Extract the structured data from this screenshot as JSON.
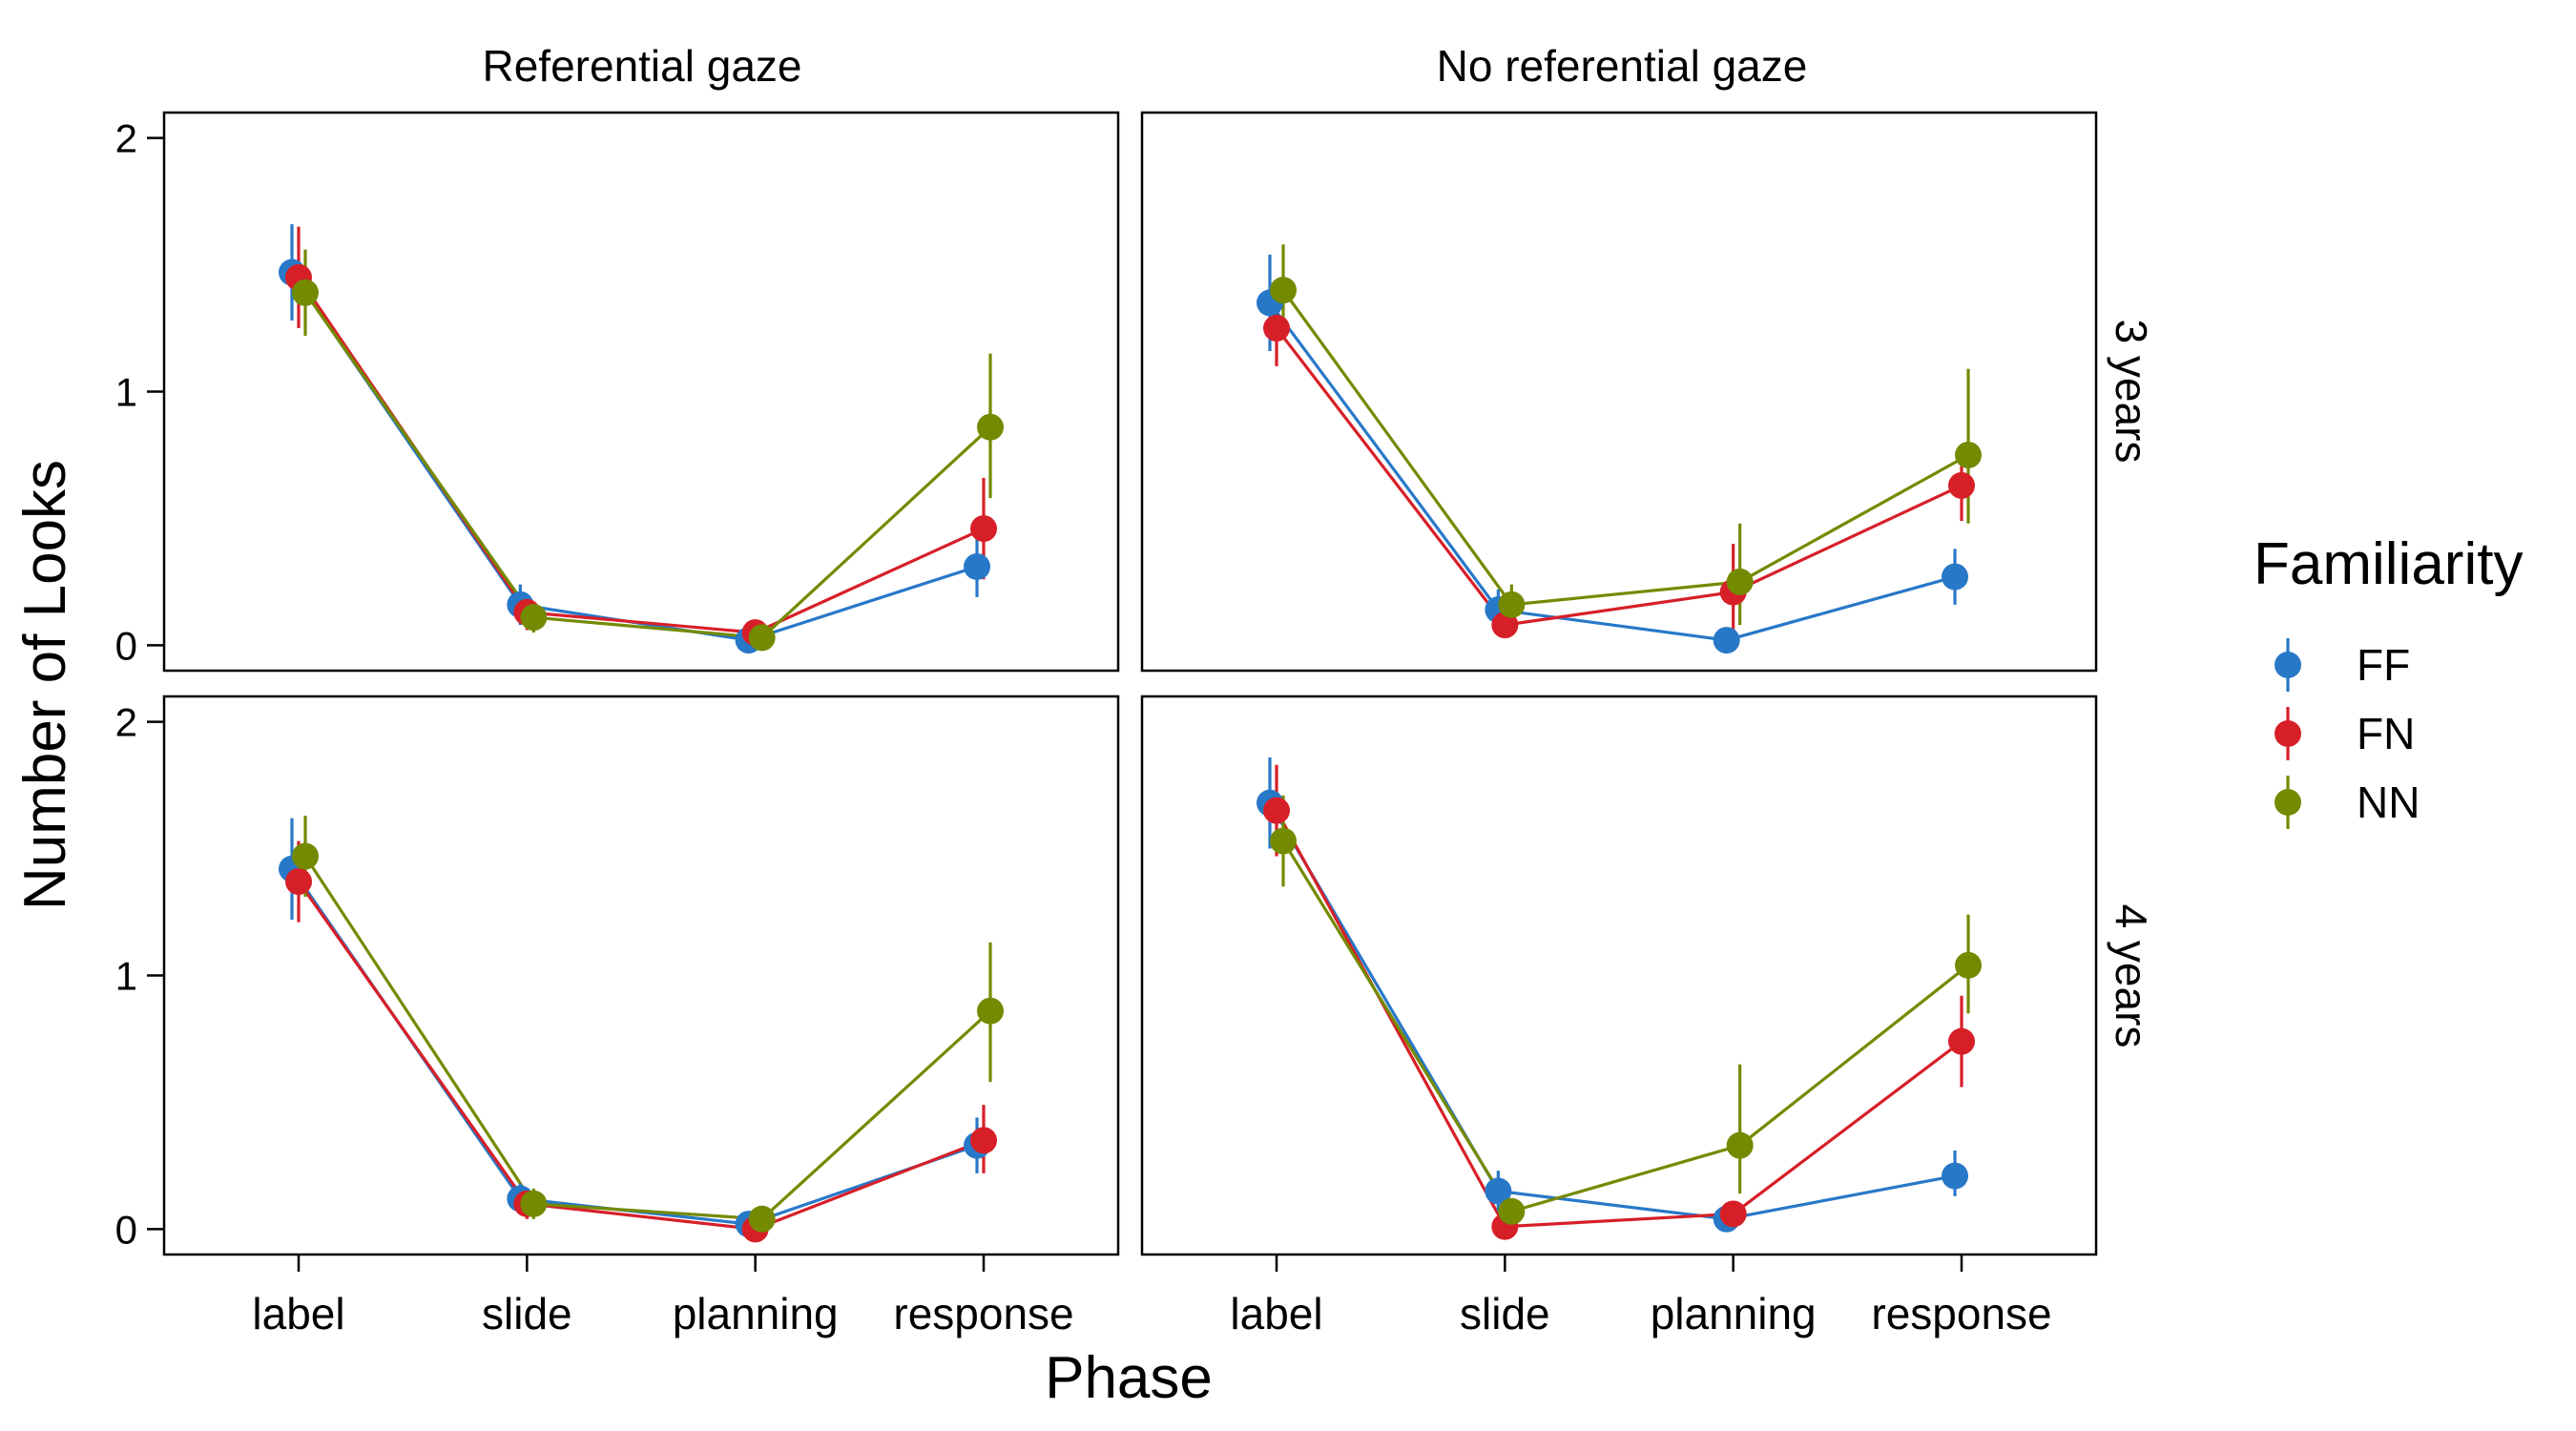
{
  "chart_data": {
    "type": "line",
    "facet_columns": [
      "Referential gaze",
      "No referential gaze"
    ],
    "facet_rows": [
      "3 years",
      "4 years"
    ],
    "categories": [
      "label",
      "slide",
      "planning",
      "response"
    ],
    "xlabel": "Phase",
    "ylabel": "Number of Looks",
    "ylim": [
      -0.1,
      2.1
    ],
    "yticks": [
      0,
      1,
      2
    ],
    "grid": false,
    "legend": {
      "title": "Familiarity",
      "position": "right",
      "entries": [
        "FF",
        "FN",
        "NN"
      ]
    },
    "series_style": {
      "FF": {
        "color": "#2878c8"
      },
      "FN": {
        "color": "#d71f28"
      },
      "NN": {
        "color": "#748a00"
      }
    },
    "panels": [
      {
        "row": "3 years",
        "column": "Referential gaze",
        "series": [
          {
            "name": "FF",
            "values": [
              1.47,
              0.16,
              0.02,
              0.31
            ],
            "lower": [
              1.28,
              0.08,
              0.0,
              0.19
            ],
            "upper": [
              1.66,
              0.24,
              0.05,
              0.43
            ]
          },
          {
            "name": "FN",
            "values": [
              1.45,
              0.13,
              0.05,
              0.46
            ],
            "lower": [
              1.25,
              0.06,
              0.02,
              0.26
            ],
            "upper": [
              1.65,
              0.2,
              0.08,
              0.66
            ]
          },
          {
            "name": "NN",
            "values": [
              1.39,
              0.11,
              0.03,
              0.86
            ],
            "lower": [
              1.22,
              0.05,
              0.01,
              0.58
            ],
            "upper": [
              1.56,
              0.17,
              0.06,
              1.15
            ]
          }
        ]
      },
      {
        "row": "3 years",
        "column": "No referential gaze",
        "series": [
          {
            "name": "FF",
            "values": [
              1.35,
              0.14,
              0.02,
              0.27
            ],
            "lower": [
              1.16,
              0.06,
              0.0,
              0.16
            ],
            "upper": [
              1.54,
              0.22,
              0.04,
              0.38
            ]
          },
          {
            "name": "FN",
            "values": [
              1.25,
              0.08,
              0.21,
              0.63
            ],
            "lower": [
              1.1,
              0.04,
              0.06,
              0.49
            ],
            "upper": [
              1.4,
              0.12,
              0.4,
              0.77
            ]
          },
          {
            "name": "NN",
            "values": [
              1.4,
              0.16,
              0.25,
              0.75
            ],
            "lower": [
              1.22,
              0.08,
              0.08,
              0.48
            ],
            "upper": [
              1.58,
              0.24,
              0.48,
              1.09
            ]
          }
        ]
      },
      {
        "row": "4 years",
        "column": "Referential gaze",
        "series": [
          {
            "name": "FF",
            "values": [
              1.42,
              0.12,
              0.02,
              0.33
            ],
            "lower": [
              1.22,
              0.06,
              0.0,
              0.22
            ],
            "upper": [
              1.62,
              0.18,
              0.05,
              0.44
            ]
          },
          {
            "name": "FN",
            "values": [
              1.37,
              0.1,
              0.0,
              0.35
            ],
            "lower": [
              1.21,
              0.04,
              0.0,
              0.22
            ],
            "upper": [
              1.53,
              0.16,
              0.02,
              0.49
            ]
          },
          {
            "name": "NN",
            "values": [
              1.47,
              0.1,
              0.04,
              0.86
            ],
            "lower": [
              1.31,
              0.04,
              0.01,
              0.58
            ],
            "upper": [
              1.63,
              0.16,
              0.07,
              1.13
            ]
          }
        ]
      },
      {
        "row": "4 years",
        "column": "No referential gaze",
        "series": [
          {
            "name": "FF",
            "values": [
              1.68,
              0.15,
              0.04,
              0.21
            ],
            "lower": [
              1.5,
              0.07,
              0.01,
              0.13
            ],
            "upper": [
              1.86,
              0.23,
              0.07,
              0.31
            ]
          },
          {
            "name": "FN",
            "values": [
              1.65,
              0.01,
              0.06,
              0.74
            ],
            "lower": [
              1.47,
              0.0,
              0.02,
              0.56
            ],
            "upper": [
              1.83,
              0.03,
              0.1,
              0.92
            ]
          },
          {
            "name": "NN",
            "values": [
              1.53,
              0.07,
              0.33,
              1.04
            ],
            "lower": [
              1.35,
              0.02,
              0.14,
              0.85
            ],
            "upper": [
              1.71,
              0.12,
              0.65,
              1.24
            ]
          }
        ]
      }
    ]
  }
}
